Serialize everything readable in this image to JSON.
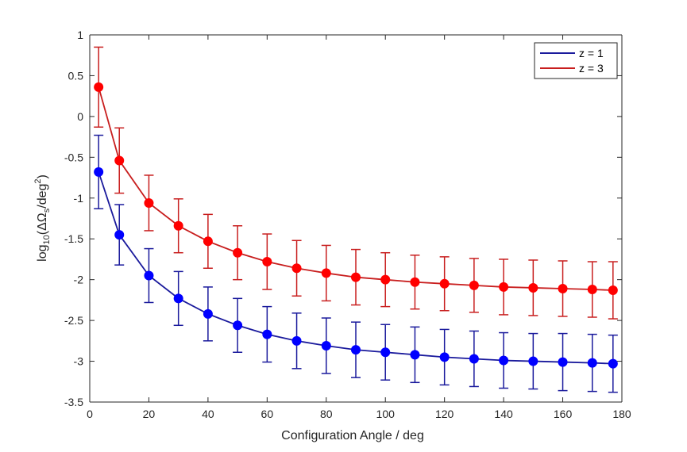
{
  "chart_data": {
    "type": "line",
    "title": "",
    "xlabel": "Configuration Angle / deg",
    "ylabel_parts": {
      "pre": "log",
      "sub1": "10",
      "mid": "(ΔΩ",
      "sub2": "s",
      "mid2": "/deg",
      "sup": "2",
      "post": ")"
    },
    "xlim": [
      0,
      180
    ],
    "ylim": [
      -3.5,
      1
    ],
    "xticks": [
      0,
      20,
      40,
      60,
      80,
      100,
      120,
      140,
      160,
      180
    ],
    "xtick_labels": [
      "0",
      "20",
      "40",
      "60",
      "80",
      "100",
      "120",
      "140",
      "160",
      "180"
    ],
    "yticks": [
      1,
      0.5,
      0,
      -0.5,
      -1,
      -1.5,
      -2,
      -2.5,
      -3,
      -3.5
    ],
    "ytick_labels": [
      "1",
      "0.5",
      "0",
      "-0.5",
      "-1",
      "-1.5",
      "-2",
      "-2.5",
      "-3",
      "-3.5"
    ],
    "grid": false,
    "legend_position": "top-right",
    "x": [
      3,
      10,
      20,
      30,
      40,
      50,
      60,
      70,
      80,
      90,
      100,
      110,
      120,
      130,
      140,
      150,
      160,
      170,
      177
    ],
    "series": [
      {
        "name": "z = 1",
        "color": "#0000ff",
        "line_color": "#1a1a9c",
        "values": [
          -0.68,
          -1.45,
          -1.95,
          -2.23,
          -2.42,
          -2.56,
          -2.67,
          -2.75,
          -2.81,
          -2.86,
          -2.89,
          -2.92,
          -2.95,
          -2.97,
          -2.99,
          -3.0,
          -3.01,
          -3.02,
          -3.03
        ],
        "errors": [
          0.45,
          0.37,
          0.33,
          0.33,
          0.33,
          0.33,
          0.34,
          0.34,
          0.34,
          0.34,
          0.34,
          0.34,
          0.34,
          0.34,
          0.34,
          0.34,
          0.35,
          0.35,
          0.35
        ]
      },
      {
        "name": "z = 3",
        "color": "#ff0000",
        "line_color": "#c81e1e",
        "values": [
          0.36,
          -0.54,
          -1.06,
          -1.34,
          -1.53,
          -1.67,
          -1.78,
          -1.86,
          -1.92,
          -1.97,
          -2.0,
          -2.03,
          -2.05,
          -2.07,
          -2.09,
          -2.1,
          -2.11,
          -2.12,
          -2.13
        ],
        "errors": [
          0.49,
          0.4,
          0.34,
          0.33,
          0.33,
          0.33,
          0.34,
          0.34,
          0.34,
          0.34,
          0.33,
          0.33,
          0.33,
          0.33,
          0.34,
          0.34,
          0.34,
          0.34,
          0.35
        ]
      }
    ]
  }
}
